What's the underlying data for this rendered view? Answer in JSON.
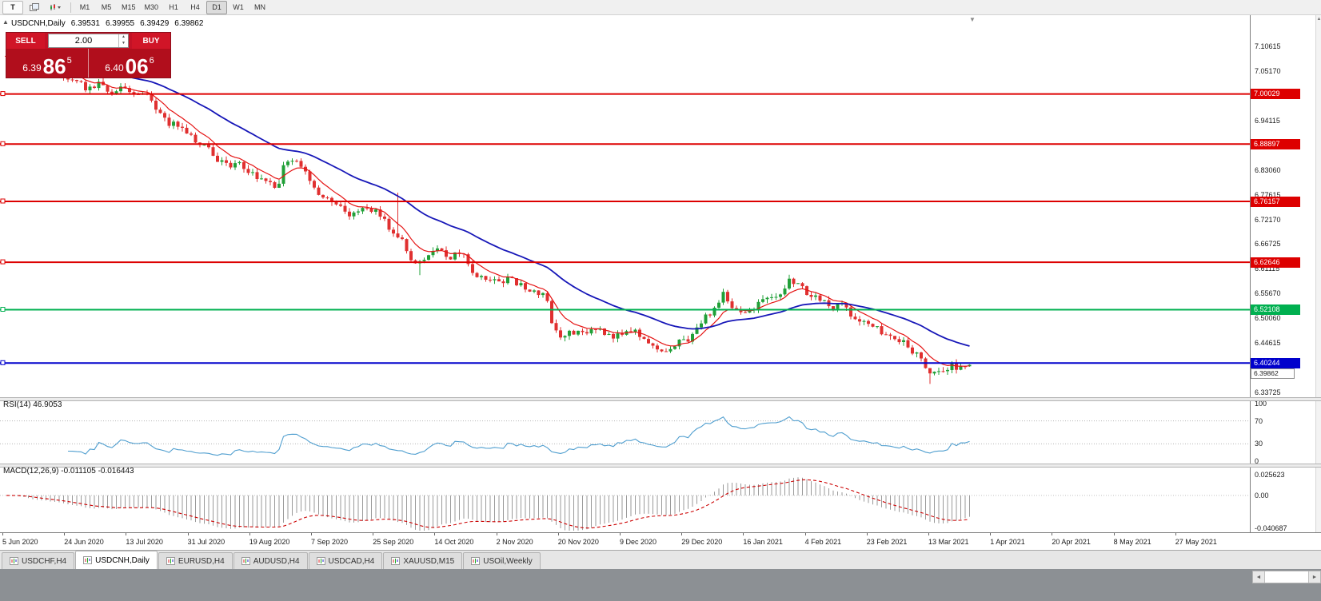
{
  "toolbar": {
    "templates_button": "T",
    "timeframes": [
      "M1",
      "M5",
      "M15",
      "M30",
      "H1",
      "H4",
      "D1",
      "W1",
      "MN"
    ],
    "active_timeframe": "D1"
  },
  "chart_header": {
    "title": "USDCNH,Daily",
    "open": "6.39531",
    "high": "6.39955",
    "low": "6.39429",
    "close": "6.39862"
  },
  "trade_panel": {
    "sell_label": "SELL",
    "buy_label": "BUY",
    "volume": "2.00",
    "sell_price_main": "6.39",
    "sell_price_big": "86",
    "sell_price_sup": "5",
    "buy_price_main": "6.40",
    "buy_price_big": "06",
    "buy_price_sup": "6"
  },
  "price_scale": {
    "labels": [
      "7.10615",
      "7.05170",
      "6.99725",
      "6.94115",
      "6.88670",
      "6.83060",
      "6.77615",
      "6.72170",
      "6.66725",
      "6.61115",
      "6.55670",
      "6.50060",
      "6.44615",
      "6.39170",
      "6.33725"
    ]
  },
  "hlines": [
    {
      "label": "7.00029",
      "value": 7.00029,
      "color": "#dd0000"
    },
    {
      "label": "6.88897",
      "value": 6.88897,
      "color": "#dd0000"
    },
    {
      "label": "6.76157",
      "value": 6.76157,
      "color": "#dd0000"
    },
    {
      "label": "6.62646",
      "value": 6.62646,
      "color": "#dd0000"
    },
    {
      "label": "6.52108",
      "value": 6.52108,
      "color": "#00b050"
    },
    {
      "label": "6.40244",
      "value": 6.40244,
      "color": "#0000cc"
    }
  ],
  "bid_tag": "6.39862",
  "rsi_panel": {
    "label": "RSI(14) 46.9053",
    "scale": [
      {
        "text": "100",
        "value": 100
      },
      {
        "text": "70",
        "value": 70
      },
      {
        "text": "30",
        "value": 30
      },
      {
        "text": "0",
        "value": 0
      }
    ],
    "dotted_levels": [
      70,
      30
    ]
  },
  "macd_panel": {
    "label": "MACD(12,26,9) -0.011105 -0.016443",
    "scale": [
      {
        "text": "0.025623",
        "value": 0.025623
      },
      {
        "text": "0.00",
        "value": 0
      },
      {
        "text": "-0.040687",
        "value": -0.040687
      }
    ]
  },
  "time_axis": [
    "5 Jun 2020",
    "24 Jun 2020",
    "13 Jul 2020",
    "31 Jul 2020",
    "19 Aug 2020",
    "7 Sep 2020",
    "25 Sep 2020",
    "14 Oct 2020",
    "2 Nov 2020",
    "20 Nov 2020",
    "9 Dec 2020",
    "29 Dec 2020",
    "16 Jan 2021",
    "4 Feb 2021",
    "23 Feb 2021",
    "13 Mar 2021",
    "1 Apr 2021",
    "20 Apr 2021",
    "8 May 2021",
    "27 May 2021"
  ],
  "tabs": [
    {
      "label": "USDCHF,H4",
      "active": false
    },
    {
      "label": "USDCNH,Daily",
      "active": true
    },
    {
      "label": "EURUSD,H4",
      "active": false
    },
    {
      "label": "AUDUSD,H4",
      "active": false
    },
    {
      "label": "USDCAD,H4",
      "active": false
    },
    {
      "label": "XAUUSD,M15",
      "active": false
    },
    {
      "label": "USOil,Weekly",
      "active": false
    }
  ],
  "chart_data": {
    "type": "candlestick",
    "symbol": "USDCNH",
    "timeframe": "Daily",
    "ohlc_current": {
      "open": 6.39531,
      "high": 6.39955,
      "low": 6.39429,
      "close": 6.39862
    },
    "x_range": [
      "5 Jun 2020",
      "27 May 2021"
    ],
    "y_range": [
      6.33725,
      7.10615
    ],
    "bars": 220,
    "price_path_anchors": [
      [
        0,
        7.085
      ],
      [
        0.027,
        7.062
      ],
      [
        0.056,
        7.045
      ],
      [
        0.072,
        7.032
      ],
      [
        0.085,
        7.01
      ],
      [
        0.097,
        7.028
      ],
      [
        0.11,
        6.996
      ],
      [
        0.122,
        7.014
      ],
      [
        0.134,
        6.99
      ],
      [
        0.147,
        6.996
      ],
      [
        0.159,
        6.955
      ],
      [
        0.172,
        6.932
      ],
      [
        0.184,
        6.925
      ],
      [
        0.197,
        6.89
      ],
      [
        0.209,
        6.876
      ],
      [
        0.222,
        6.852
      ],
      [
        0.234,
        6.836
      ],
      [
        0.242,
        6.846
      ],
      [
        0.255,
        6.822
      ],
      [
        0.267,
        6.816
      ],
      [
        0.28,
        6.79
      ],
      [
        0.288,
        6.838
      ],
      [
        0.3,
        6.856
      ],
      [
        0.313,
        6.812
      ],
      [
        0.325,
        6.782
      ],
      [
        0.338,
        6.76
      ],
      [
        0.35,
        6.742
      ],
      [
        0.363,
        6.731
      ],
      [
        0.375,
        6.754
      ],
      [
        0.388,
        6.726
      ],
      [
        0.4,
        6.7
      ],
      [
        0.413,
        6.664
      ],
      [
        0.425,
        6.616
      ],
      [
        0.438,
        6.645
      ],
      [
        0.45,
        6.654
      ],
      [
        0.462,
        6.64
      ],
      [
        0.475,
        6.644
      ],
      [
        0.487,
        6.6
      ],
      [
        0.5,
        6.576
      ],
      [
        0.512,
        6.59
      ],
      [
        0.525,
        6.584
      ],
      [
        0.537,
        6.574
      ],
      [
        0.55,
        6.56
      ],
      [
        0.562,
        6.545
      ],
      [
        0.566,
        6.5
      ],
      [
        0.574,
        6.456
      ],
      [
        0.587,
        6.47
      ],
      [
        0.6,
        6.464
      ],
      [
        0.612,
        6.478
      ],
      [
        0.624,
        6.47
      ],
      [
        0.637,
        6.46
      ],
      [
        0.65,
        6.474
      ],
      [
        0.662,
        6.464
      ],
      [
        0.674,
        6.44
      ],
      [
        0.687,
        6.424
      ],
      [
        0.7,
        6.45
      ],
      [
        0.712,
        6.46
      ],
      [
        0.724,
        6.5
      ],
      [
        0.737,
        6.524
      ],
      [
        0.745,
        6.558
      ],
      [
        0.753,
        6.53
      ],
      [
        0.766,
        6.51
      ],
      [
        0.778,
        6.53
      ],
      [
        0.79,
        6.548
      ],
      [
        0.803,
        6.56
      ],
      [
        0.811,
        6.584
      ],
      [
        0.824,
        6.576
      ],
      [
        0.832,
        6.56
      ],
      [
        0.844,
        6.54
      ],
      [
        0.857,
        6.526
      ],
      [
        0.869,
        6.53
      ],
      [
        0.882,
        6.5
      ],
      [
        0.894,
        6.488
      ],
      [
        0.907,
        6.474
      ],
      [
        0.915,
        6.456
      ],
      [
        0.923,
        6.46
      ],
      [
        0.936,
        6.444
      ],
      [
        0.948,
        6.41
      ],
      [
        0.961,
        6.376
      ],
      [
        0.969,
        6.39
      ],
      [
        0.981,
        6.396
      ],
      [
        0.99,
        6.392
      ],
      [
        1,
        6.398
      ]
    ],
    "spikes": [
      {
        "t": 0.406,
        "high": 6.781
      },
      {
        "t": 0.427,
        "low": 6.598
      },
      {
        "t": 0.961,
        "low": 6.356
      }
    ],
    "horizontal_lines": [
      7.00029,
      6.88897,
      6.76157,
      6.62646,
      6.52108,
      6.40244
    ],
    "moving_averages": [
      {
        "name": "fast-ma-red",
        "period": 8
      },
      {
        "name": "slow-ma-blue",
        "period": 34
      }
    ],
    "rsi": {
      "period": 14,
      "last": 46.9053,
      "range": [
        0,
        100
      ]
    },
    "macd": {
      "fast": 12,
      "slow": 26,
      "signal": 9,
      "last_main": -0.011105,
      "last_signal": -0.016443,
      "scale_max": 0.025623,
      "scale_min": -0.040687
    }
  },
  "colors": {
    "up": "#21a038",
    "down": "#e03030",
    "ma_fast": "#e51414",
    "ma_slow": "#1717b8",
    "rsi_line": "#4f9ecf",
    "macd_hist": "#9a9a9a",
    "macd_signal": "#cc0000",
    "panel_red": "#b10e1c",
    "button_red": "#d01527"
  }
}
